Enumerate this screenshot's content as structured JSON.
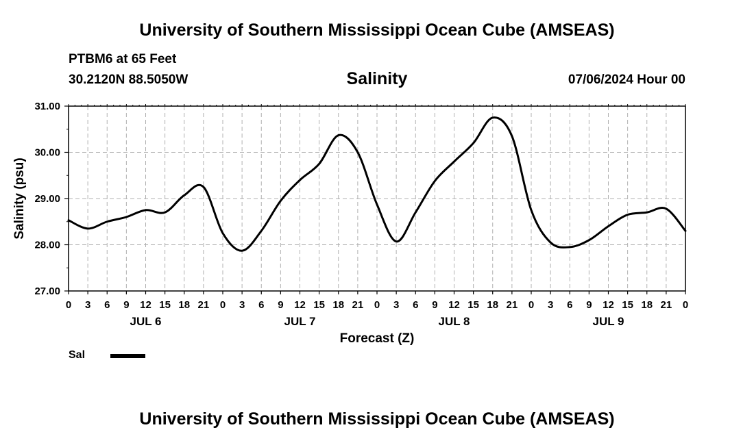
{
  "header": {
    "title_top": "University of Southern Mississippi Ocean Cube (AMSEAS)",
    "station": "PTBM6 at 65 Feet",
    "coords": "30.2120N  88.5050W",
    "chart_title": "Salinity",
    "datetime": "07/06/2024 Hour 00"
  },
  "footer": {
    "title_bottom": "University of Southern Mississippi Ocean Cube (AMSEAS)"
  },
  "legend": {
    "label": "Sal"
  },
  "colors": {
    "line": "#000000",
    "grid": "#b0b0b0",
    "background": "#ffffff"
  },
  "chart_data": {
    "type": "line",
    "title": "Salinity",
    "xlabel": "Forecast (Z)",
    "ylabel": "Salinity (psu)",
    "ylim": [
      27.0,
      31.0
    ],
    "yticks": [
      "27.00",
      "28.00",
      "29.00",
      "30.00",
      "31.00"
    ],
    "xlim_hours": [
      0,
      96
    ],
    "hour_tick_step": 3,
    "hour_tick_labels": [
      "0",
      "3",
      "6",
      "9",
      "12",
      "15",
      "18",
      "21",
      "0",
      "3",
      "6",
      "9",
      "12",
      "15",
      "18",
      "21",
      "0",
      "3",
      "6",
      "9",
      "12",
      "15",
      "18",
      "21",
      "0",
      "3",
      "6",
      "9",
      "12",
      "15",
      "18",
      "21",
      "0"
    ],
    "day_labels": [
      {
        "label": "JUL 6",
        "hour": 12
      },
      {
        "label": "JUL 7",
        "hour": 36
      },
      {
        "label": "JUL 8",
        "hour": 60
      },
      {
        "label": "JUL 9",
        "hour": 84
      }
    ],
    "grid": true,
    "series": [
      {
        "name": "Sal",
        "x": [
          0,
          3,
          6,
          9,
          12,
          15,
          18,
          21,
          24,
          27,
          30,
          33,
          36,
          39,
          42,
          45,
          48,
          51,
          54,
          57,
          60,
          63,
          66,
          69,
          72,
          75,
          78,
          81,
          84,
          87,
          90,
          93,
          96
        ],
        "y": [
          28.53,
          28.35,
          28.5,
          28.6,
          28.75,
          28.7,
          29.07,
          29.25,
          28.25,
          27.87,
          28.3,
          28.95,
          29.4,
          29.75,
          30.37,
          30.0,
          28.87,
          28.07,
          28.7,
          29.38,
          29.8,
          30.2,
          30.75,
          30.35,
          28.75,
          28.05,
          27.95,
          28.1,
          28.4,
          28.65,
          28.7,
          28.78,
          28.3
        ]
      }
    ]
  }
}
